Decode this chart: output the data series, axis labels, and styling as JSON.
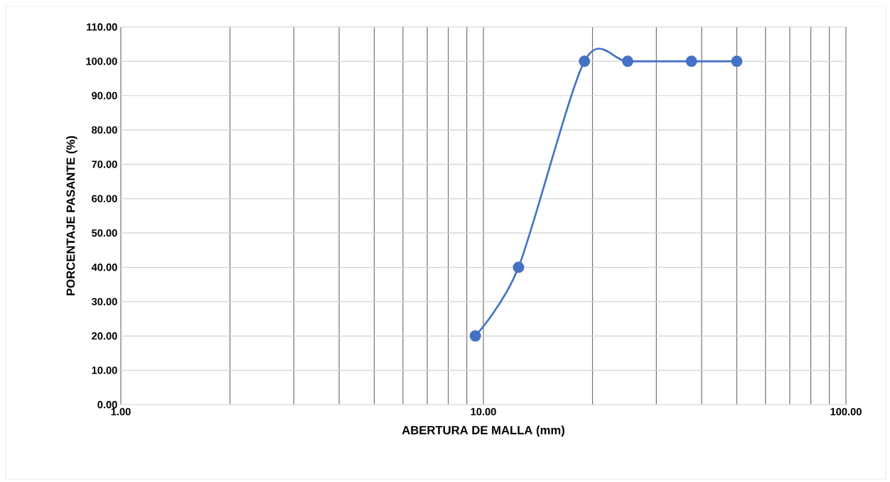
{
  "chart_data": {
    "type": "line",
    "xlabel": "ABERTURA DE MALLA (mm)",
    "ylabel": "PORCENTAJE PASANTE (%)",
    "log": "x",
    "grid": true,
    "marker": "circle",
    "line_style": "solid",
    "xlim": [
      1,
      100
    ],
    "xticks": [
      {
        "value": 1,
        "label": "1.00"
      },
      {
        "value": 10,
        "label": "10.00"
      },
      {
        "value": 100,
        "label": "100.00"
      }
    ],
    "ylim": [
      0,
      110
    ],
    "yticks": [
      {
        "value": 0,
        "label": "0.00"
      },
      {
        "value": 10,
        "label": "10.00"
      },
      {
        "value": 20,
        "label": "20.00"
      },
      {
        "value": 30,
        "label": "30.00"
      },
      {
        "value": 40,
        "label": "40.00"
      },
      {
        "value": 50,
        "label": "50.00"
      },
      {
        "value": 60,
        "label": "60.00"
      },
      {
        "value": 70,
        "label": "70.00"
      },
      {
        "value": 80,
        "label": "80.00"
      },
      {
        "value": 90,
        "label": "90.00"
      },
      {
        "value": 100,
        "label": "100.00"
      },
      {
        "value": 110,
        "label": "110.00"
      }
    ],
    "x": [
      9.5,
      12.5,
      19,
      25,
      37.5,
      50
    ],
    "series": [
      {
        "color": "#4472c4",
        "values": [
          20,
          40,
          100,
          100,
          100,
          100
        ]
      }
    ]
  }
}
